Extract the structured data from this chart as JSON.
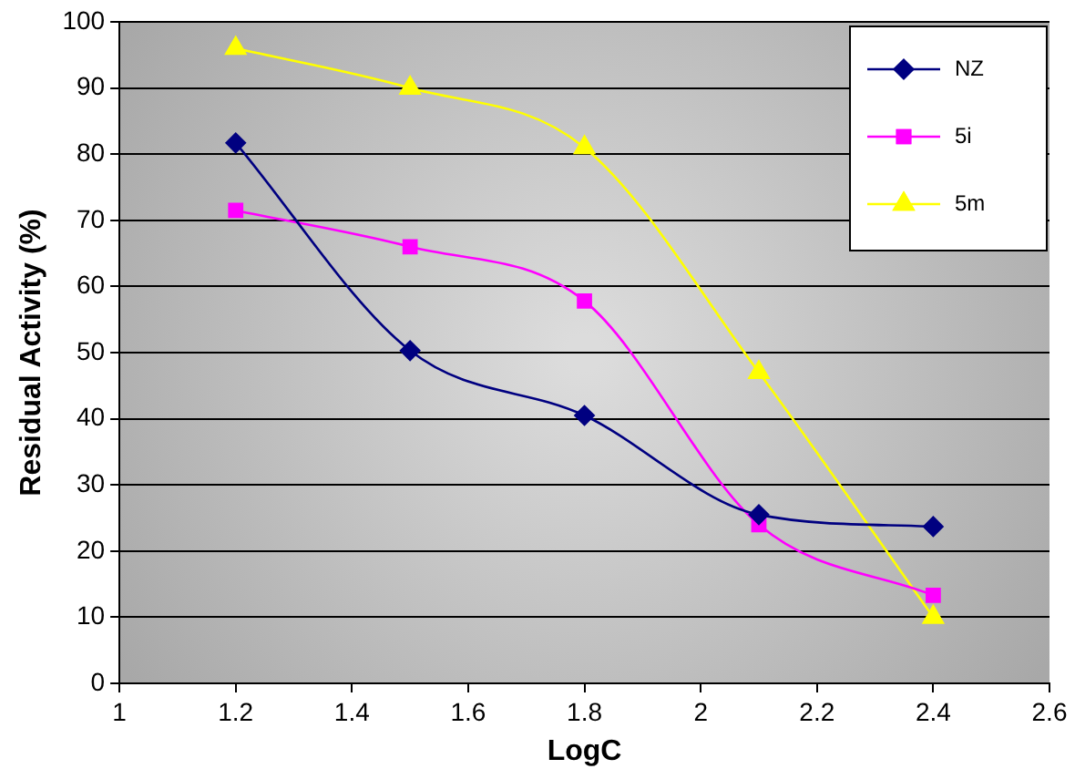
{
  "chart_data": {
    "type": "line",
    "xlabel": "LogC",
    "ylabel": "Residual Activity (%)",
    "xlim": [
      1,
      2.6
    ],
    "xticks": [
      1,
      1.2,
      1.4,
      1.6,
      1.8,
      2,
      2.2,
      2.4,
      2.6
    ],
    "ylim": [
      0,
      100
    ],
    "yticks": [
      0,
      10,
      20,
      30,
      40,
      50,
      60,
      70,
      80,
      90,
      100
    ],
    "grid": "y",
    "legend": "top right",
    "series": [
      {
        "name": "NZ",
        "color": "#000080",
        "marker": "diamond",
        "x": [
          1.2,
          1.5,
          1.8,
          2.1,
          2.4
        ],
        "values": [
          81.7,
          50.3,
          40.5,
          25.5,
          23.7
        ]
      },
      {
        "name": "5i",
        "color": "#ff00ff",
        "marker": "square",
        "x": [
          1.2,
          1.5,
          1.8,
          2.1,
          2.4
        ],
        "values": [
          71.5,
          66,
          57.8,
          24,
          13.3
        ]
      },
      {
        "name": "5m",
        "color": "#ffff00",
        "marker": "triangle",
        "x": [
          1.2,
          1.5,
          1.8,
          2.1,
          2.4
        ],
        "values": [
          96,
          90,
          81,
          47,
          10
        ]
      }
    ]
  }
}
